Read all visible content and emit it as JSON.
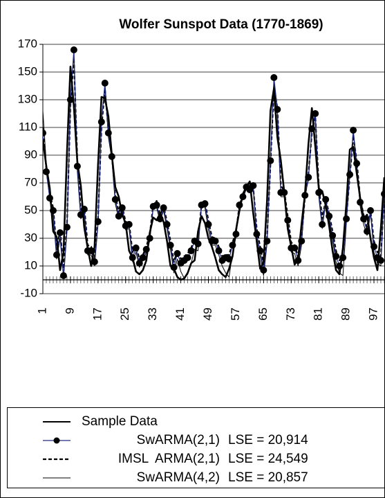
{
  "chart_data": {
    "type": "line",
    "title": "Wolfer Sunspot Data (1770-1869)",
    "x": [
      1,
      2,
      3,
      4,
      5,
      6,
      7,
      8,
      9,
      10,
      11,
      12,
      13,
      14,
      15,
      16,
      17,
      18,
      19,
      20,
      21,
      22,
      23,
      24,
      25,
      26,
      27,
      28,
      29,
      30,
      31,
      32,
      33,
      34,
      35,
      36,
      37,
      38,
      39,
      40,
      41,
      42,
      43,
      44,
      45,
      46,
      47,
      48,
      49,
      50,
      51,
      52,
      53,
      54,
      55,
      56,
      57,
      58,
      59,
      60,
      61,
      62,
      63,
      64,
      65,
      66,
      67,
      68,
      69,
      70,
      71,
      72,
      73,
      74,
      75,
      76,
      77,
      78,
      79,
      80,
      81,
      82,
      83,
      84,
      85,
      86,
      87,
      88,
      89,
      90,
      91,
      92,
      93,
      94,
      95,
      96,
      97,
      98,
      99,
      100
    ],
    "xlim": [
      1,
      100
    ],
    "xticks": [
      1,
      9,
      17,
      25,
      33,
      41,
      49,
      57,
      65,
      73,
      81,
      89,
      97
    ],
    "ylim": [
      -10,
      170
    ],
    "yticks": [
      -10,
      10,
      30,
      50,
      70,
      90,
      110,
      130,
      150,
      170
    ],
    "grid": true,
    "series": [
      {
        "name": "Sample Data",
        "color": "#000000",
        "style": "solid",
        "values": [
          101,
          82,
          66,
          35,
          31,
          7,
          20,
          92,
          154,
          125,
          85,
          68,
          38,
          23,
          10,
          24,
          83,
          132,
          131,
          118,
          90,
          67,
          60,
          47,
          41,
          21,
          16,
          6,
          4,
          7,
          14,
          34,
          45,
          43,
          48,
          42,
          28,
          10,
          8,
          2,
          0,
          1,
          5,
          12,
          14,
          35,
          46,
          41,
          30,
          24,
          16,
          7,
          4,
          2,
          8,
          17,
          36,
          50,
          62,
          67,
          71,
          48,
          28,
          8,
          13,
          57,
          122,
          138,
          103,
          86,
          63,
          37,
          24,
          11,
          15,
          40,
          62,
          98,
          124,
          96,
          66,
          64,
          54,
          39,
          21,
          7,
          4,
          23,
          55,
          94,
          96,
          77,
          59,
          44,
          47,
          30,
          16,
          7,
          37,
          74
        ]
      },
      {
        "name": "SwARMA(2,1)",
        "lse": "LSE = 20,914",
        "color": "#1f2a80",
        "style": "marker",
        "values": [
          106,
          78,
          59,
          50,
          18,
          34,
          3,
          38,
          130,
          166,
          82,
          47,
          51,
          21,
          21,
          13,
          42,
          114,
          142,
          106,
          89,
          58,
          46,
          52,
          39,
          40,
          16,
          23,
          12,
          16,
          22,
          30,
          53,
          54,
          44,
          52,
          40,
          25,
          9,
          19,
          12,
          14,
          16,
          21,
          28,
          26,
          54,
          55,
          40,
          28,
          28,
          21,
          14,
          16,
          15,
          25,
          33,
          54,
          60,
          67,
          65,
          68,
          33,
          21,
          7,
          28,
          86,
          146,
          123,
          63,
          63,
          43,
          23,
          23,
          14,
          28,
          61,
          74,
          109,
          120,
          63,
          40,
          58,
          46,
          32,
          17,
          10,
          16,
          44,
          76,
          108,
          84,
          56,
          44,
          35,
          50,
          24,
          16,
          14,
          62
        ]
      },
      {
        "name": "IMSL  ARMA(2,1)",
        "lse": "LSE = 24,549",
        "color": "#000000",
        "style": "dashed",
        "values": [
          110,
          80,
          62,
          52,
          22,
          36,
          8,
          40,
          126,
          160,
          86,
          50,
          53,
          25,
          24,
          16,
          44,
          110,
          138,
          108,
          90,
          61,
          49,
          53,
          42,
          41,
          20,
          25,
          15,
          18,
          24,
          33,
          54,
          57,
          47,
          53,
          42,
          28,
          13,
          21,
          15,
          17,
          19,
          23,
          30,
          29,
          54,
          56,
          43,
          31,
          30,
          24,
          17,
          18,
          18,
          27,
          35,
          54,
          61,
          66,
          66,
          67,
          37,
          24,
          11,
          30,
          84,
          140,
          124,
          68,
          64,
          46,
          27,
          25,
          17,
          30,
          60,
          76,
          106,
          118,
          68,
          44,
          58,
          48,
          35,
          21,
          14,
          19,
          45,
          75,
          104,
          86,
          59,
          47,
          38,
          50,
          28,
          20,
          17,
          60
        ]
      },
      {
        "name": "SwARMA(4,2)",
        "lse": "LSE = 20,857",
        "color": "#000000",
        "style": "thin",
        "values": [
          122,
          84,
          57,
          47,
          15,
          30,
          1,
          35,
          132,
          163,
          78,
          44,
          49,
          18,
          18,
          10,
          40,
          116,
          140,
          103,
          87,
          55,
          44,
          50,
          36,
          37,
          13,
          20,
          9,
          14,
          20,
          28,
          52,
          52,
          42,
          50,
          37,
          22,
          5,
          15,
          6,
          1,
          4,
          12,
          22,
          21,
          55,
          52,
          36,
          25,
          25,
          18,
          10,
          5,
          2,
          20,
          31,
          55,
          58,
          66,
          63,
          66,
          30,
          17,
          3,
          26,
          88,
          143,
          120,
          60,
          60,
          40,
          20,
          19,
          10,
          25,
          61,
          72,
          110,
          117,
          60,
          37,
          56,
          43,
          29,
          13,
          5,
          3,
          41,
          77,
          106,
          82,
          53,
          40,
          32,
          48,
          20,
          12,
          10,
          72
        ]
      }
    ]
  }
}
